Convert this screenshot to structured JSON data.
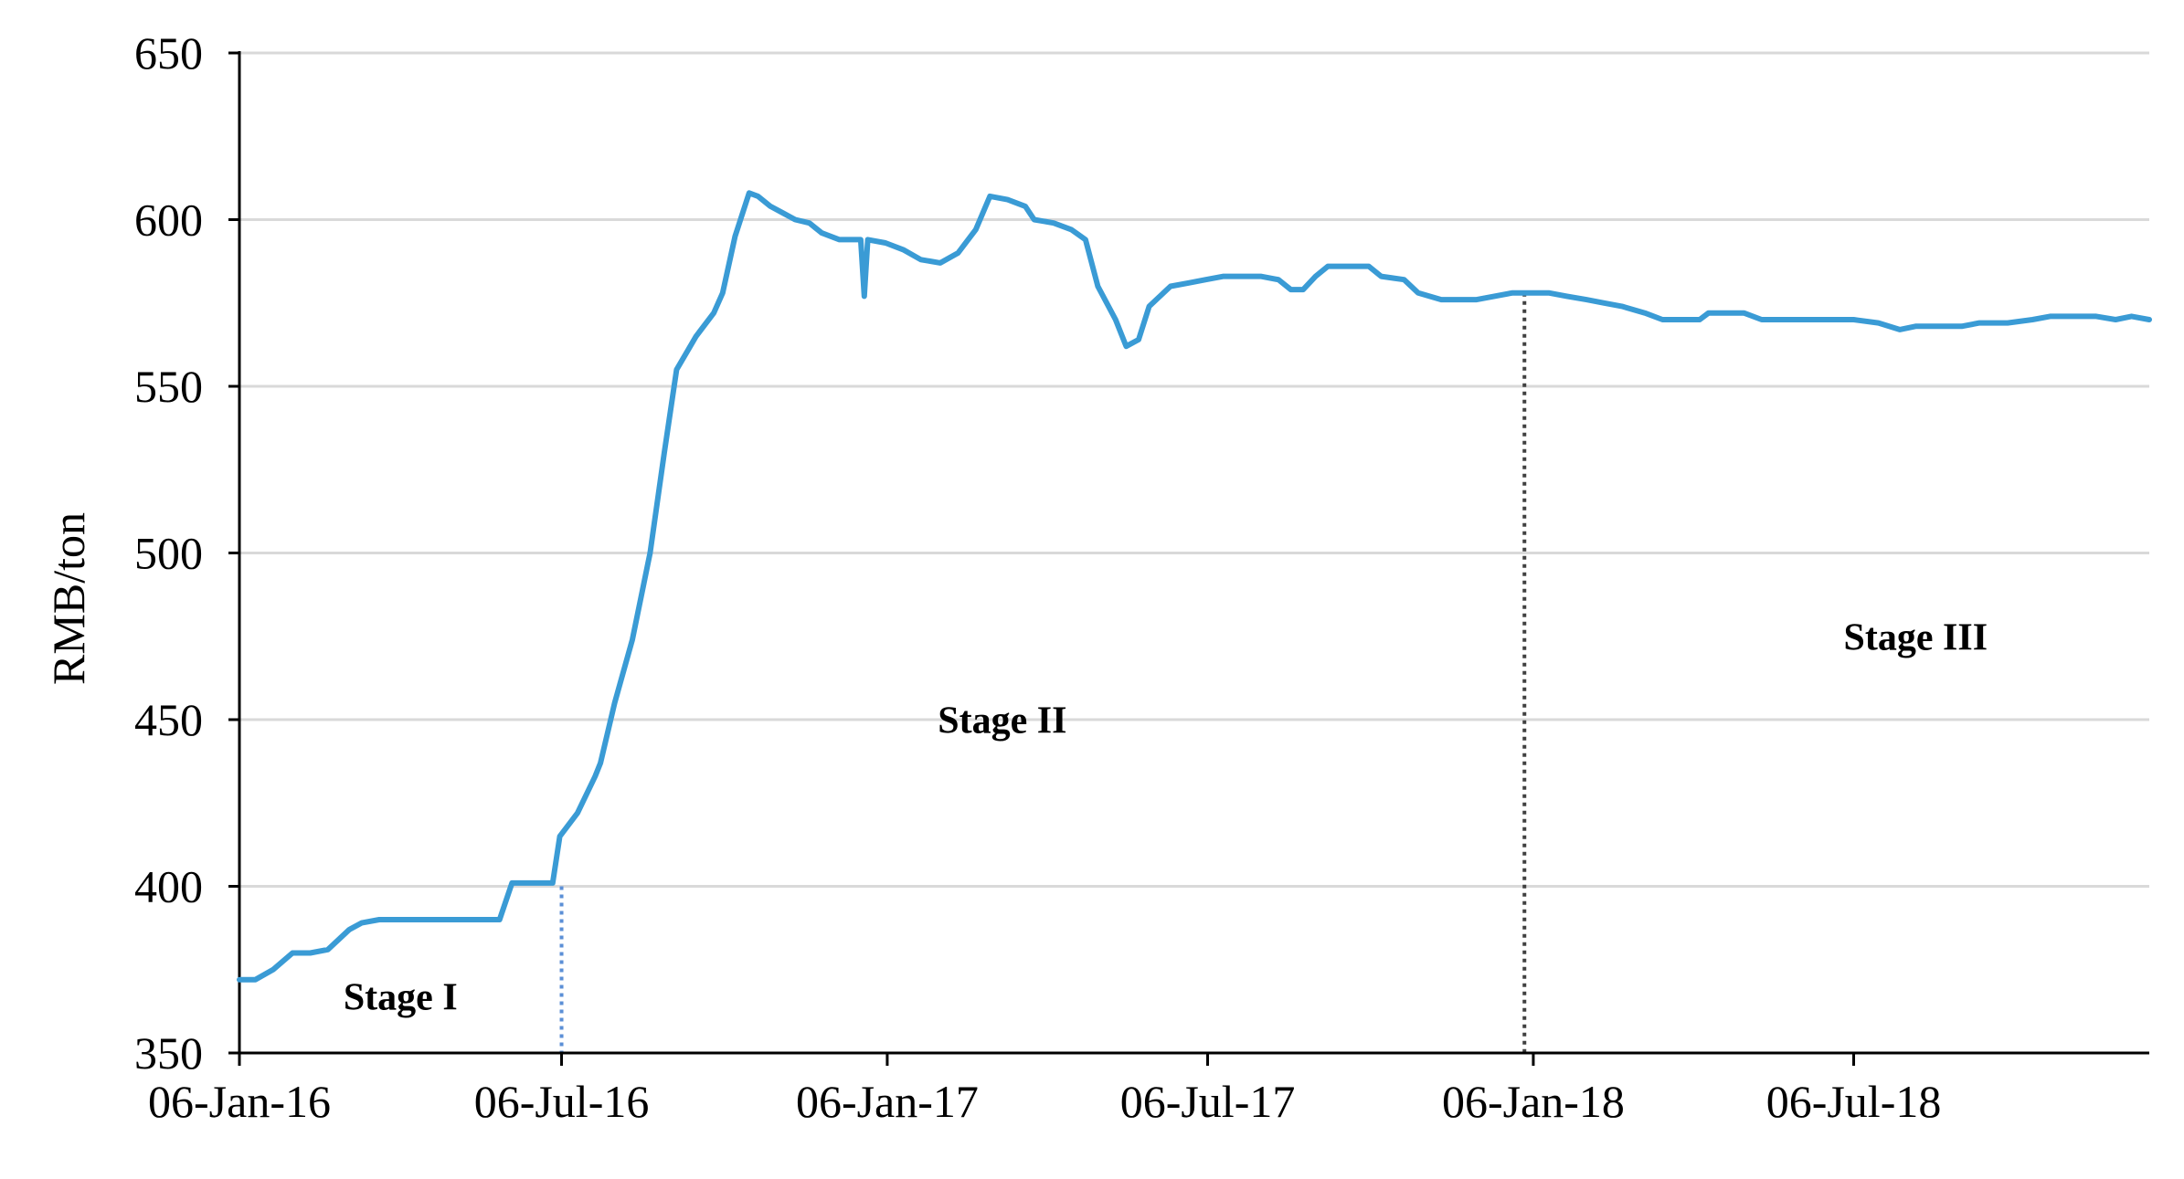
{
  "chart_data": {
    "type": "line",
    "title": "",
    "xlabel": "",
    "ylabel": "RMB/ton",
    "ylim": [
      350,
      650
    ],
    "yticks": [
      350,
      400,
      450,
      500,
      550,
      600,
      650
    ],
    "xlim": [
      "2016-01-06",
      "2018-12-20"
    ],
    "xticks": [
      {
        "date": "2016-01-06",
        "label": "06-Jan-16"
      },
      {
        "date": "2016-07-06",
        "label": "06-Jul-16"
      },
      {
        "date": "2017-01-06",
        "label": "06-Jan-17"
      },
      {
        "date": "2017-07-06",
        "label": "06-Jul-17"
      },
      {
        "date": "2018-01-06",
        "label": "06-Jan-18"
      },
      {
        "date": "2018-07-06",
        "label": "06-Jul-18"
      }
    ],
    "grid": true,
    "legend": "none",
    "colors": {
      "series": "#3a9bd5",
      "divider_1": "#5b8fd6",
      "divider_2": "#404040"
    },
    "series": [
      {
        "name": "",
        "points": [
          [
            "2016-01-06",
            372
          ],
          [
            "2016-01-15",
            372
          ],
          [
            "2016-01-25",
            375
          ],
          [
            "2016-02-05",
            380
          ],
          [
            "2016-02-15",
            380
          ],
          [
            "2016-02-25",
            381
          ],
          [
            "2016-03-08",
            387
          ],
          [
            "2016-03-15",
            389
          ],
          [
            "2016-03-25",
            390
          ],
          [
            "2016-04-10",
            390
          ],
          [
            "2016-04-25",
            390
          ],
          [
            "2016-05-10",
            390
          ],
          [
            "2016-05-25",
            390
          ],
          [
            "2016-06-01",
            390
          ],
          [
            "2016-06-08",
            401
          ],
          [
            "2016-06-20",
            401
          ],
          [
            "2016-07-01",
            401
          ],
          [
            "2016-07-05",
            415
          ],
          [
            "2016-07-15",
            422
          ],
          [
            "2016-07-25",
            433
          ],
          [
            "2016-07-28",
            437
          ],
          [
            "2016-08-05",
            455
          ],
          [
            "2016-08-15",
            474
          ],
          [
            "2016-08-25",
            500
          ],
          [
            "2016-09-02",
            530
          ],
          [
            "2016-09-09",
            555
          ],
          [
            "2016-09-20",
            565
          ],
          [
            "2016-09-30",
            572
          ],
          [
            "2016-10-05",
            578
          ],
          [
            "2016-10-12",
            595
          ],
          [
            "2016-10-20",
            608
          ],
          [
            "2016-10-25",
            607
          ],
          [
            "2016-11-01",
            604
          ],
          [
            "2016-11-08",
            602
          ],
          [
            "2016-11-15",
            600
          ],
          [
            "2016-11-23",
            599
          ],
          [
            "2016-11-30",
            596
          ],
          [
            "2016-12-10",
            594
          ],
          [
            "2016-12-20",
            594
          ],
          [
            "2016-12-22",
            594
          ],
          [
            "2016-12-24",
            577
          ],
          [
            "2016-12-26",
            594
          ],
          [
            "2017-01-05",
            593
          ],
          [
            "2017-01-15",
            591
          ],
          [
            "2017-01-25",
            588
          ],
          [
            "2017-02-05",
            587
          ],
          [
            "2017-02-15",
            590
          ],
          [
            "2017-02-25",
            597
          ],
          [
            "2017-03-05",
            607
          ],
          [
            "2017-03-15",
            606
          ],
          [
            "2017-03-25",
            604
          ],
          [
            "2017-03-30",
            600
          ],
          [
            "2017-04-10",
            599
          ],
          [
            "2017-04-20",
            597
          ],
          [
            "2017-04-28",
            594
          ],
          [
            "2017-05-05",
            580
          ],
          [
            "2017-05-15",
            570
          ],
          [
            "2017-05-21",
            562
          ],
          [
            "2017-05-28",
            564
          ],
          [
            "2017-06-03",
            574
          ],
          [
            "2017-06-15",
            580
          ],
          [
            "2017-06-25",
            581
          ],
          [
            "2017-07-05",
            582
          ],
          [
            "2017-07-15",
            583
          ],
          [
            "2017-07-25",
            583
          ],
          [
            "2017-08-05",
            583
          ],
          [
            "2017-08-15",
            582
          ],
          [
            "2017-08-22",
            579
          ],
          [
            "2017-08-29",
            579
          ],
          [
            "2017-09-05",
            583
          ],
          [
            "2017-09-12",
            586
          ],
          [
            "2017-09-20",
            586
          ],
          [
            "2017-10-05",
            586
          ],
          [
            "2017-10-12",
            583
          ],
          [
            "2017-10-25",
            582
          ],
          [
            "2017-11-02",
            578
          ],
          [
            "2017-11-15",
            576
          ],
          [
            "2017-11-25",
            576
          ],
          [
            "2017-12-05",
            576
          ],
          [
            "2017-12-15",
            577
          ],
          [
            "2017-12-25",
            578
          ],
          [
            "2018-01-06",
            578
          ],
          [
            "2018-01-15",
            578
          ],
          [
            "2018-01-25",
            577
          ],
          [
            "2018-02-05",
            576
          ],
          [
            "2018-02-15",
            575
          ],
          [
            "2018-02-25",
            574
          ],
          [
            "2018-03-10",
            572
          ],
          [
            "2018-03-20",
            570
          ],
          [
            "2018-04-01",
            570
          ],
          [
            "2018-04-10",
            570
          ],
          [
            "2018-04-15",
            572
          ],
          [
            "2018-04-25",
            572
          ],
          [
            "2018-05-05",
            572
          ],
          [
            "2018-05-15",
            570
          ],
          [
            "2018-05-25",
            570
          ],
          [
            "2018-06-10",
            570
          ],
          [
            "2018-06-25",
            570
          ],
          [
            "2018-07-06",
            570
          ],
          [
            "2018-07-20",
            569
          ],
          [
            "2018-08-01",
            567
          ],
          [
            "2018-08-10",
            568
          ],
          [
            "2018-08-25",
            568
          ],
          [
            "2018-09-05",
            568
          ],
          [
            "2018-09-15",
            569
          ],
          [
            "2018-10-01",
            569
          ],
          [
            "2018-10-15",
            570
          ],
          [
            "2018-10-25",
            571
          ],
          [
            "2018-11-05",
            571
          ],
          [
            "2018-11-20",
            571
          ],
          [
            "2018-12-01",
            570
          ],
          [
            "2018-12-10",
            571
          ],
          [
            "2018-12-20",
            570
          ]
        ]
      }
    ],
    "dividers": [
      {
        "date": "2016-07-06",
        "from": 350,
        "to": 400,
        "style": "dotted"
      },
      {
        "date": "2018-01-01",
        "from": 350,
        "to": 578,
        "style": "dotted"
      }
    ],
    "annotations": [
      {
        "text": "Stage   I",
        "x": "2016-04-06",
        "y": 363
      },
      {
        "text": "Stage II",
        "x": "2017-03-12",
        "y": 446
      },
      {
        "text": "Stage III",
        "x": "2018-08-10",
        "y": 471
      }
    ]
  }
}
